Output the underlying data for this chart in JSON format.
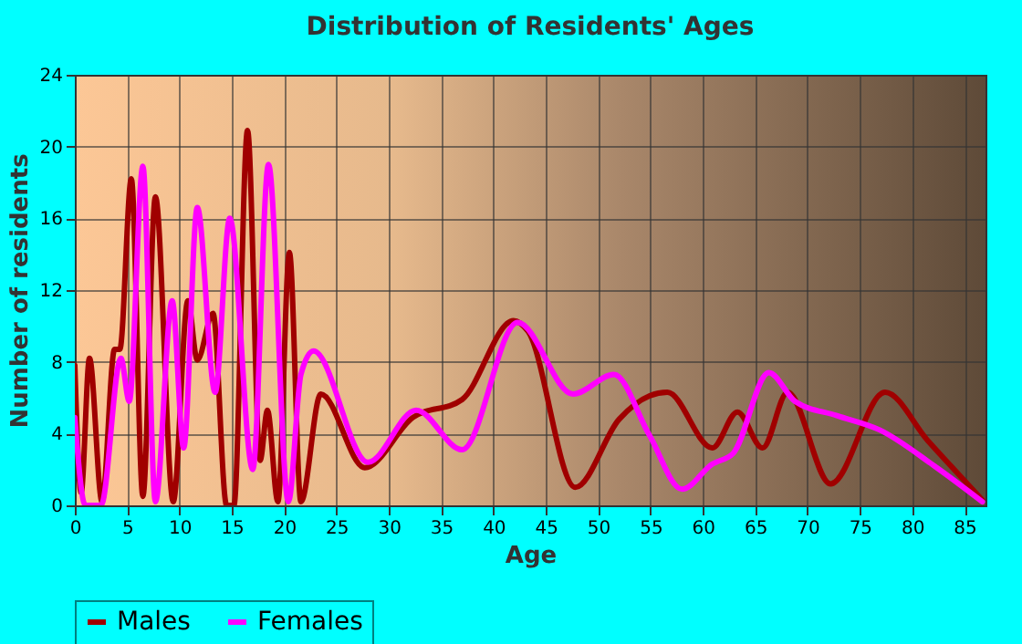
{
  "chart_data": {
    "type": "line",
    "title": "Distribution of Residents' Ages",
    "xlabel": "Age",
    "ylabel": "Number of residents",
    "xlim": [
      0,
      87
    ],
    "xticks": [
      0,
      5,
      10,
      15,
      20,
      25,
      30,
      35,
      40,
      45,
      50,
      55,
      60,
      65,
      70,
      75,
      80,
      85
    ],
    "ylim": [
      0,
      24
    ],
    "yticks": [
      0,
      4,
      8,
      12,
      16,
      20,
      24
    ],
    "grid": true,
    "legend": "bottom",
    "series": [
      {
        "name": "Males",
        "color": "#a00000",
        "x": [
          0,
          0.6,
          1.4,
          2.6,
          3.8,
          4.3,
          5.4,
          6.5,
          7.7,
          9.4,
          10.8,
          11.7,
          13.2,
          14.5,
          15.2,
          16.5,
          17.7,
          18.4,
          19.4,
          20.5,
          21.6,
          23.5,
          27.7,
          32.3,
          37,
          41.9,
          43.3,
          47.8,
          52,
          54.9,
          56.6,
          60.9,
          63.3,
          65.7,
          68.1,
          72.2,
          77.4,
          81.5,
          86.7
        ],
        "values": [
          7.8,
          0.7,
          8.2,
          0.2,
          8.7,
          8.7,
          18.2,
          0.5,
          17.2,
          0.2,
          11.4,
          8.1,
          10.7,
          0,
          0,
          20.9,
          2.5,
          5.3,
          0.2,
          14.1,
          0.2,
          6.2,
          2.1,
          4.9,
          5.9,
          10.3,
          9.7,
          1.0,
          4.8,
          6.1,
          6.3,
          3.2,
          5.2,
          3.2,
          6.3,
          1.2,
          6.3,
          3.6,
          0.3
        ]
      },
      {
        "name": "Females",
        "color": "#ff00ff",
        "x": [
          0,
          1,
          2.5,
          4.4,
          5.2,
          6.5,
          7.7,
          9.3,
          10.4,
          11.7,
          13.4,
          14.8,
          17,
          18.5,
          20.4,
          21.6,
          22.8,
          28,
          32.6,
          37,
          42.3,
          47.6,
          51.5,
          54.9,
          58,
          60.9,
          62.9,
          66.3,
          68.8,
          72.8,
          76.9,
          82.1,
          86.7
        ],
        "values": [
          4.9,
          0,
          0,
          8.2,
          5.8,
          18.9,
          0.2,
          11.4,
          3.2,
          16.6,
          6.3,
          16.0,
          2,
          19,
          0.2,
          7.3,
          8.6,
          2.4,
          5.3,
          3.1,
          10.2,
          6.2,
          7.3,
          3.9,
          0.9,
          2.3,
          2.9,
          7.4,
          5.8,
          5.0,
          4.2,
          2.2,
          0.2
        ]
      }
    ]
  }
}
